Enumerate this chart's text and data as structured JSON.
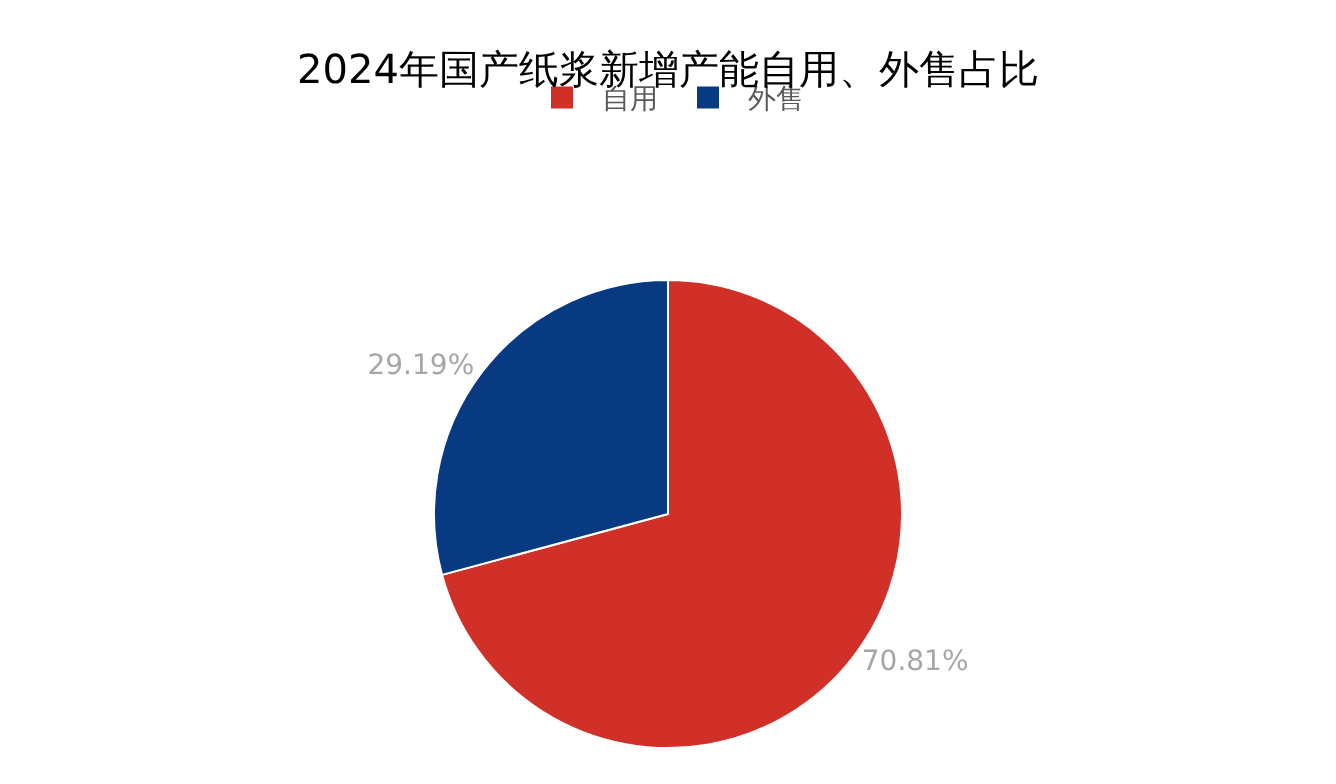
{
  "chart_data": {
    "type": "pie",
    "title": "2024年国产纸浆新增产能自用、外售占比",
    "categories": [
      "自用",
      "外售"
    ],
    "values": [
      70.81,
      29.19
    ],
    "colors": [
      "#d03027",
      "#073a80"
    ],
    "value_labels": [
      "70.81%",
      "29.19%"
    ],
    "legend": "top"
  }
}
